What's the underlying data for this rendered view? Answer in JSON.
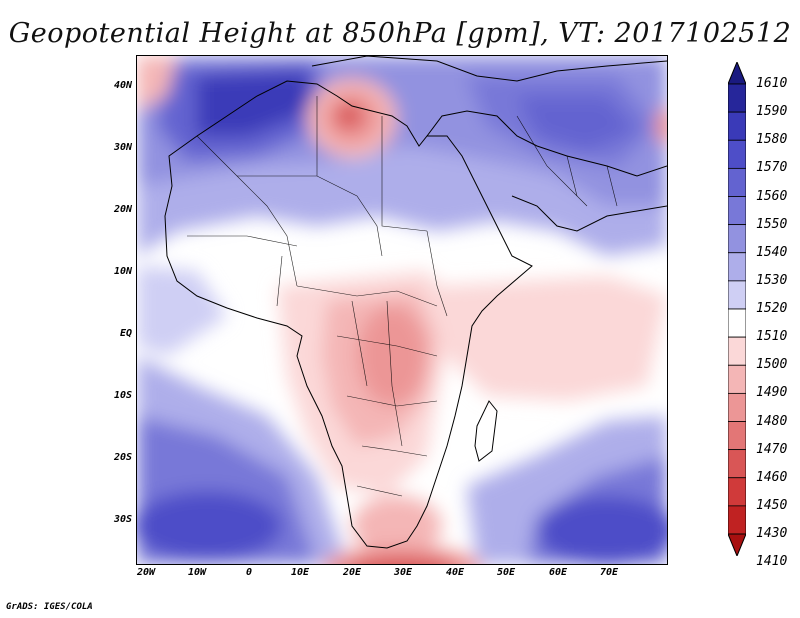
{
  "title": "Geopotential Height at 850hPa [gpm], VT: 2017102512",
  "footer": "GrADS: IGES/COLA",
  "lat_ticks": [
    "40N",
    "30N",
    "20N",
    "10N",
    "EQ",
    "10S",
    "20S",
    "30S"
  ],
  "lon_ticks": [
    "20W",
    "10W",
    "0",
    "10E",
    "20E",
    "30E",
    "40E",
    "50E",
    "60E",
    "70E"
  ],
  "colorbar": {
    "levels": [
      "1610",
      "1590",
      "1580",
      "1570",
      "1560",
      "1550",
      "1540",
      "1530",
      "1520",
      "1510",
      "1500",
      "1490",
      "1480",
      "1470",
      "1460",
      "1450",
      "1430",
      "1410"
    ],
    "colors": [
      "#1a1a80",
      "#26269a",
      "#3a3ab8",
      "#4e4ec8",
      "#6363d0",
      "#7878d8",
      "#9292e0",
      "#aeaeea",
      "#cfcff4",
      "#ffffff",
      "#fbd8d8",
      "#f4b6b6",
      "#ec9696",
      "#e37676",
      "#d95656",
      "#d03a3a",
      "#c02222",
      "#a81010"
    ]
  },
  "map": {
    "variable": "Geopotential Height at 850hPa",
    "units": "gpm",
    "valid_time": "2017102512",
    "lon_range": [
      -23,
      80
    ],
    "lat_range": [
      -37,
      45
    ]
  }
}
